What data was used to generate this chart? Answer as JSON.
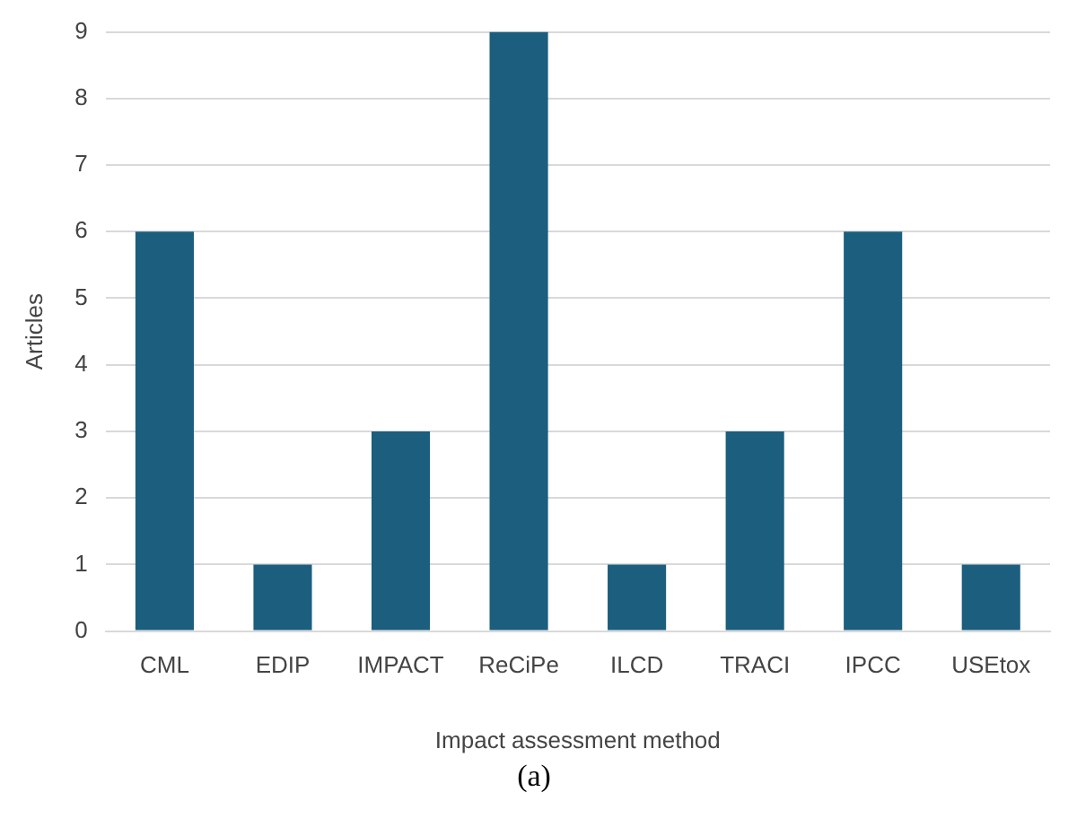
{
  "chart_data": {
    "type": "bar",
    "xlabel": "Impact assessment method",
    "ylabel": "Articles",
    "categories": [
      "CML",
      "EDIP",
      "IMPACT",
      "ReCiPe",
      "ILCD",
      "TRACI",
      "IPCC",
      "USEtox"
    ],
    "values": [
      6,
      1,
      3,
      9,
      1,
      3,
      6,
      1
    ],
    "color": "#1b5e7e",
    "ylim": [
      0,
      9
    ],
    "yticks": [
      0,
      1,
      2,
      3,
      4,
      5,
      6,
      7,
      8,
      9
    ],
    "grid": "y",
    "legend": false,
    "annotations": [
      "(a)"
    ]
  }
}
